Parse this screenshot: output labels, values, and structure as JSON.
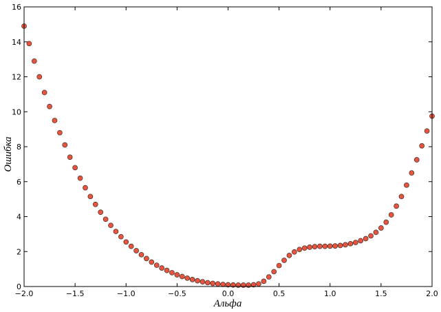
{
  "chart_data": {
    "type": "scatter",
    "xlabel": "Альфа",
    "ylabel": "Ошибка",
    "x": [
      -2,
      -1.95,
      -1.9,
      -1.85,
      -1.8,
      -1.75,
      -1.7,
      -1.65,
      -1.6,
      -1.55,
      -1.5,
      -1.45,
      -1.4,
      -1.35,
      -1.3,
      -1.25,
      -1.2,
      -1.15,
      -1.1,
      -1.05,
      -1,
      -0.95,
      -0.9,
      -0.85,
      -0.8,
      -0.75,
      -0.7,
      -0.65,
      -0.6,
      -0.55,
      -0.5,
      -0.45,
      -0.4,
      -0.35,
      -0.3,
      -0.25,
      -0.2,
      -0.15,
      -0.1,
      -0.05,
      0,
      0.05,
      0.1,
      0.15,
      0.2,
      0.25,
      0.3,
      0.35,
      0.4,
      0.45,
      0.5,
      0.55,
      0.6,
      0.65,
      0.7,
      0.75,
      0.8,
      0.85,
      0.9,
      0.95,
      1,
      1.05,
      1.1,
      1.15,
      1.2,
      1.25,
      1.3,
      1.35,
      1.4,
      1.45,
      1.5,
      1.55,
      1.6,
      1.65,
      1.7,
      1.75,
      1.8,
      1.85,
      1.9,
      1.95,
      2
    ],
    "values": [
      14.9,
      13.9,
      12.9,
      12.0,
      11.1,
      10.3,
      9.5,
      8.8,
      8.1,
      7.4,
      6.8,
      6.2,
      5.65,
      5.15,
      4.7,
      4.25,
      3.85,
      3.5,
      3.15,
      2.85,
      2.55,
      2.3,
      2.05,
      1.82,
      1.6,
      1.4,
      1.22,
      1.06,
      0.92,
      0.79,
      0.67,
      0.57,
      0.48,
      0.4,
      0.33,
      0.27,
      0.22,
      0.18,
      0.15,
      0.12,
      0.1,
      0.09,
      0.08,
      0.08,
      0.08,
      0.1,
      0.15,
      0.3,
      0.55,
      0.85,
      1.2,
      1.5,
      1.78,
      1.98,
      2.12,
      2.2,
      2.25,
      2.28,
      2.3,
      2.3,
      2.31,
      2.32,
      2.35,
      2.39,
      2.45,
      2.52,
      2.62,
      2.74,
      2.9,
      3.1,
      3.35,
      3.68,
      4.1,
      4.6,
      5.15,
      5.8,
      6.5,
      7.25,
      8.05,
      8.9,
      9.75
    ],
    "color": "#e8553e",
    "xlim": [
      -2,
      2
    ],
    "ylim": [
      0,
      16
    ],
    "xticks": [
      {
        "value": -2,
        "label": "−2.0"
      },
      {
        "value": -1.5,
        "label": "−1.5"
      },
      {
        "value": -1,
        "label": "−1.0"
      },
      {
        "value": -0.5,
        "label": "−0.5"
      },
      {
        "value": 0,
        "label": "0.0"
      },
      {
        "value": 0.5,
        "label": "0.5"
      },
      {
        "value": 1,
        "label": "1.0"
      },
      {
        "value": 1.5,
        "label": "1.5"
      },
      {
        "value": 2,
        "label": "2.0"
      }
    ],
    "yticks": [
      0,
      2,
      4,
      6,
      8,
      10,
      12,
      14,
      16
    ]
  }
}
